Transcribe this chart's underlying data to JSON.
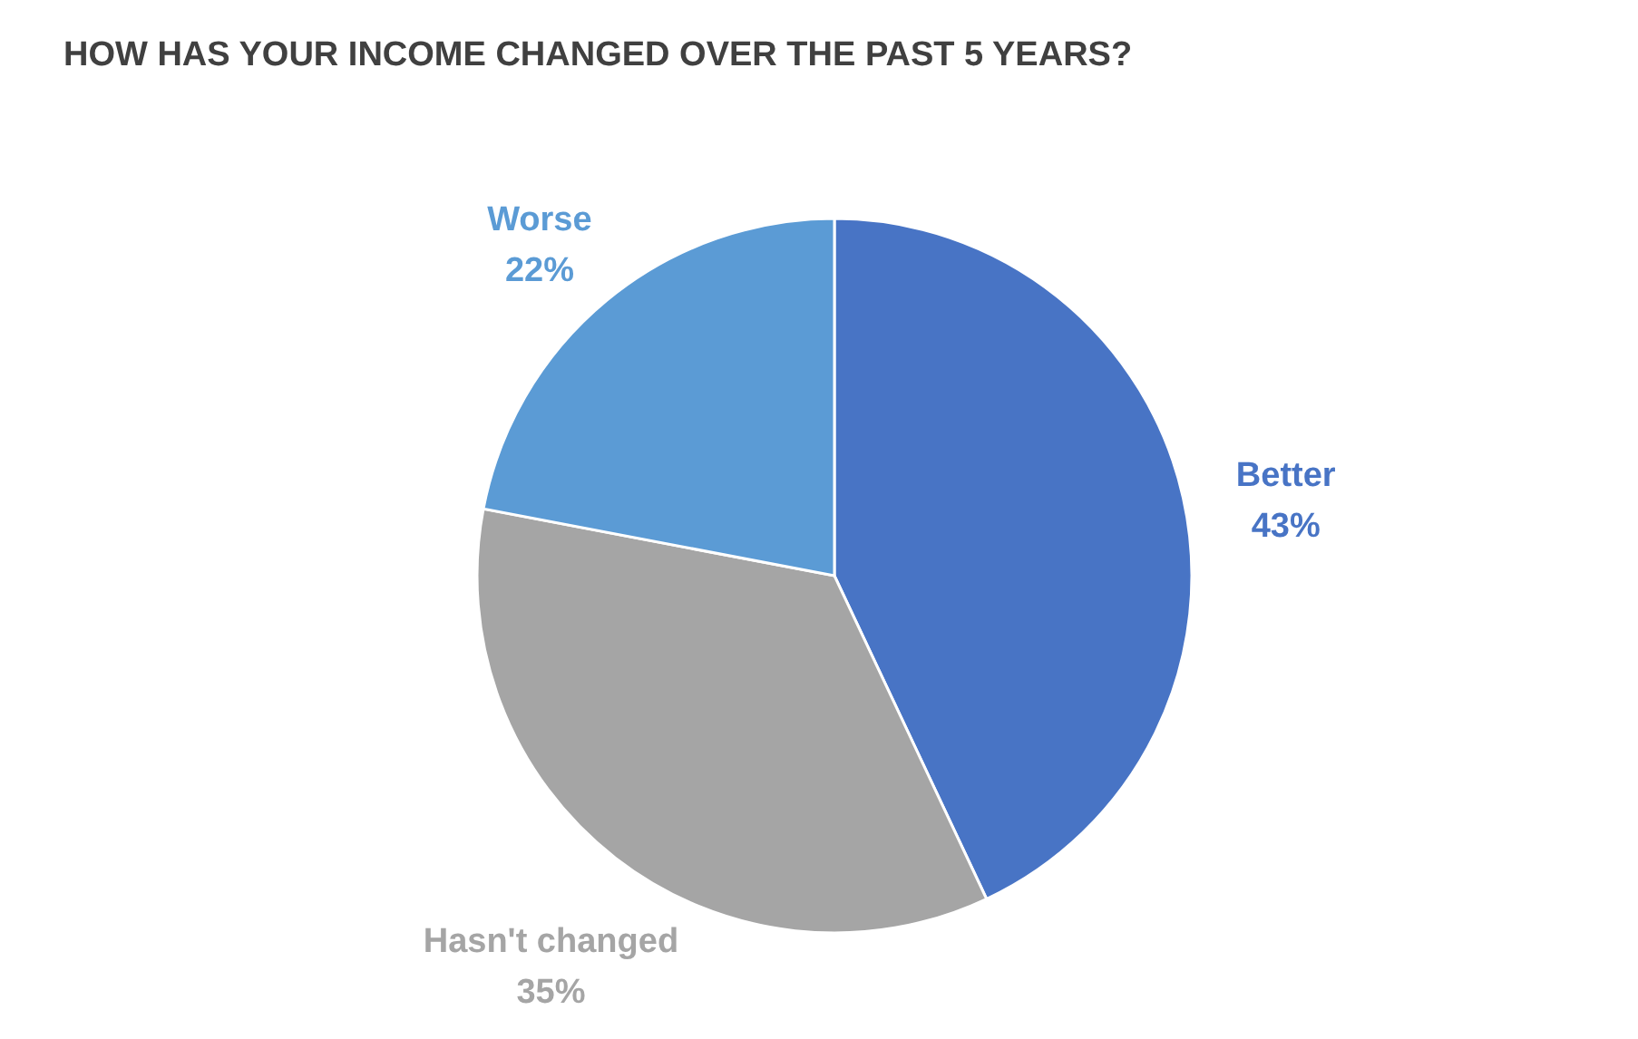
{
  "chart_data": {
    "type": "pie",
    "title": "HOW HAS YOUR INCOME CHANGED OVER THE PAST 5 YEARS?",
    "categories": [
      "Better",
      "Hasn't changed",
      "Worse"
    ],
    "values": [
      43,
      35,
      22
    ],
    "colors": [
      "#4874c5",
      "#a5a5a5",
      "#5b9bd5"
    ],
    "value_labels": [
      "43%",
      "35%",
      "22%"
    ]
  }
}
